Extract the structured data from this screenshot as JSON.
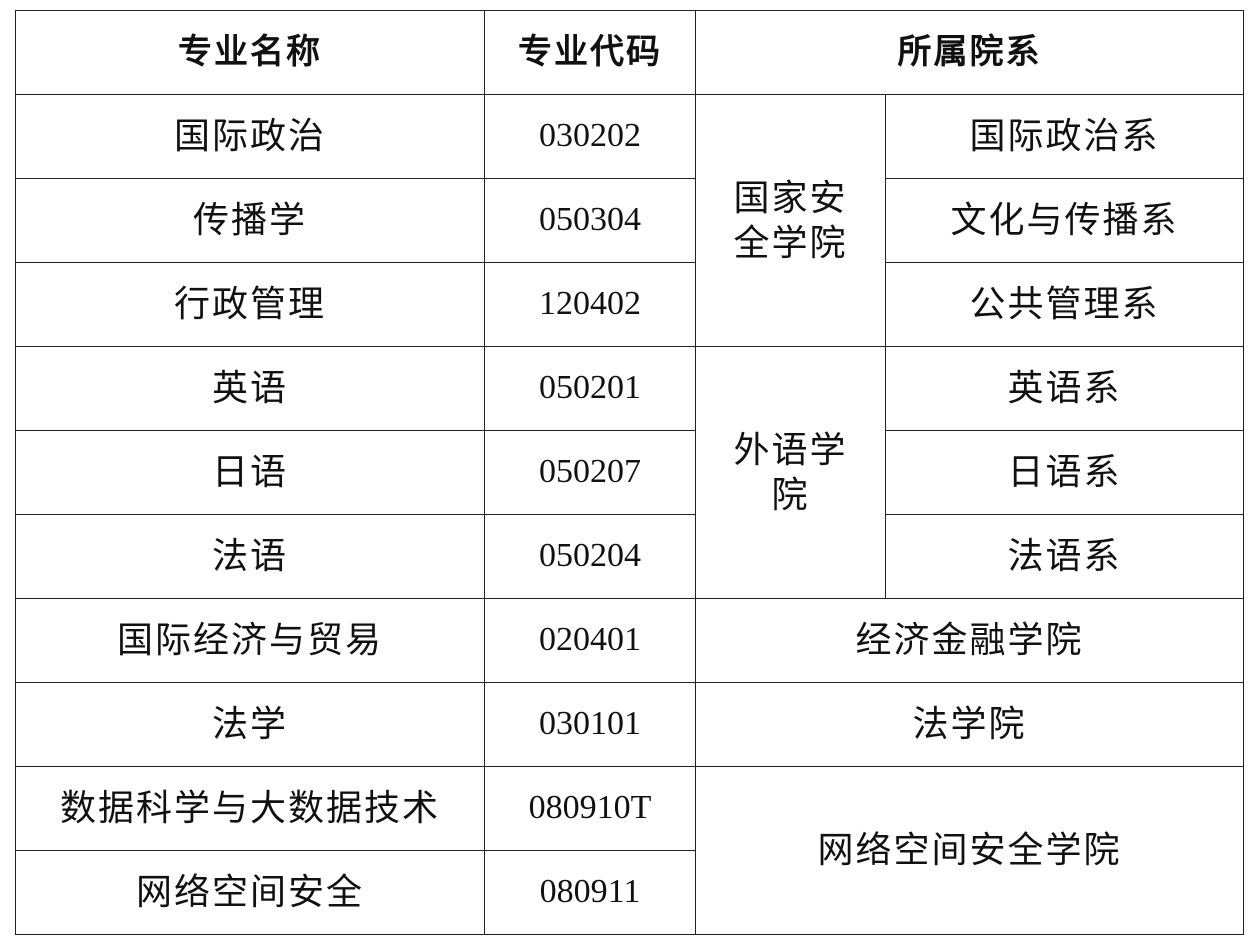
{
  "headers": {
    "name": "专业名称",
    "code": "专业代码",
    "dept": "所属院系"
  },
  "rows": [
    {
      "name": "国际政治",
      "code": "030202",
      "sub": "国际政治系"
    },
    {
      "name": "传播学",
      "code": "050304",
      "sub": "文化与传播系"
    },
    {
      "name": "行政管理",
      "code": "120402",
      "sub": "公共管理系"
    },
    {
      "name": "英语",
      "code": "050201",
      "sub": "英语系"
    },
    {
      "name": "日语",
      "code": "050207",
      "sub": "日语系"
    },
    {
      "name": "法语",
      "code": "050204",
      "sub": "法语系"
    },
    {
      "name": "国际经济与贸易",
      "code": "020401"
    },
    {
      "name": "法学",
      "code": "030101"
    },
    {
      "name": "数据科学与大数据技术",
      "code": "080910T"
    },
    {
      "name": "网络空间安全",
      "code": "080911"
    }
  ],
  "colleges": {
    "security_line1": "国家安",
    "security_line2": "全学院",
    "foreign_line1": "外语学",
    "foreign_line2": "院",
    "economics": "经济金融学院",
    "law": "法学院",
    "cyber": "网络空间安全学院"
  }
}
